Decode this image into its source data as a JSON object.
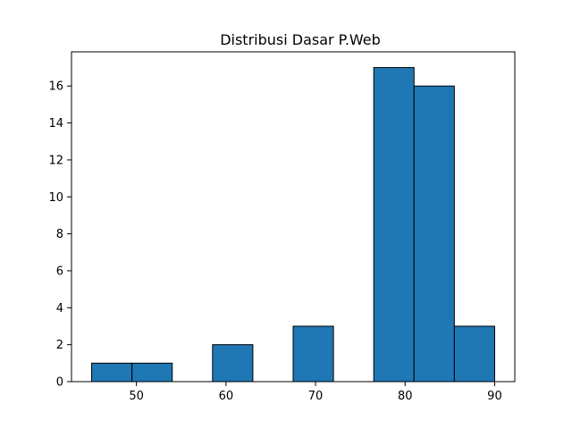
{
  "chart_data": {
    "type": "bar",
    "title": "Distribusi Dasar P.Web",
    "xlabel": "",
    "ylabel": "",
    "bins": [
      {
        "start": 45.0,
        "end": 49.5,
        "count": 1
      },
      {
        "start": 49.5,
        "end": 54.0,
        "count": 1
      },
      {
        "start": 54.0,
        "end": 58.5,
        "count": 0
      },
      {
        "start": 58.5,
        "end": 63.0,
        "count": 2
      },
      {
        "start": 63.0,
        "end": 67.5,
        "count": 0
      },
      {
        "start": 67.5,
        "end": 72.0,
        "count": 3
      },
      {
        "start": 72.0,
        "end": 76.5,
        "count": 0
      },
      {
        "start": 76.5,
        "end": 81.0,
        "count": 17
      },
      {
        "start": 81.0,
        "end": 85.5,
        "count": 16
      },
      {
        "start": 85.5,
        "end": 90.0,
        "count": 3
      }
    ],
    "xlim": [
      42.75,
      92.25
    ],
    "ylim": [
      0,
      17.85
    ],
    "xticks": [
      "50",
      "60",
      "70",
      "80",
      "90"
    ],
    "yticks": [
      "0",
      "2",
      "4",
      "6",
      "8",
      "10",
      "12",
      "14",
      "16"
    ],
    "bar_color": "#1f77b4",
    "edge_color": "#000000",
    "grid": false,
    "legend": "none"
  }
}
